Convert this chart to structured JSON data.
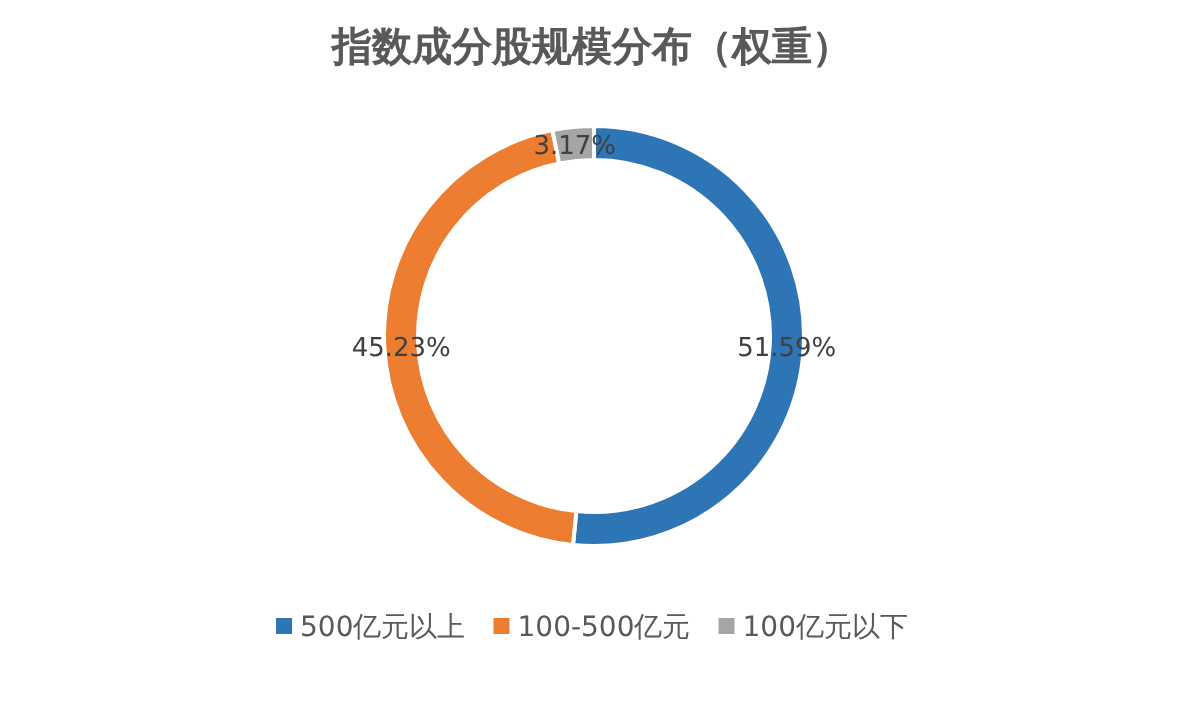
{
  "chart_data": {
    "type": "donut",
    "title": "指数成分股规模分布（权重）",
    "categories": [
      "500亿元以上",
      "100-500亿元",
      "100亿元以下"
    ],
    "values": [
      51.59,
      45.23,
      3.17
    ],
    "value_labels": [
      "51.59%",
      "45.23%",
      "3.17%"
    ],
    "colors": [
      "#2e75b6",
      "#ed7d31",
      "#a5a5a5"
    ],
    "legend": "bottom"
  }
}
